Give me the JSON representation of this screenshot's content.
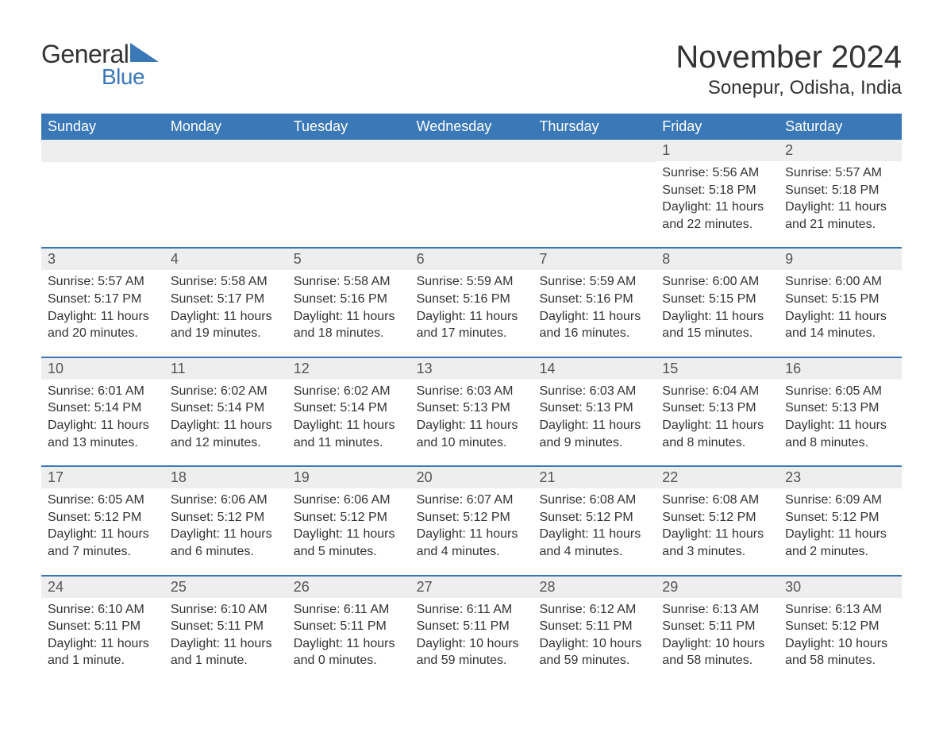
{
  "logo": {
    "text1": "General",
    "text2": "Blue",
    "iconColor": "#3b78b8"
  },
  "header": {
    "title": "November 2024",
    "location": "Sonepur, Odisha, India"
  },
  "colors": {
    "headerBg": "#3b78b8",
    "headerText": "#ffffff",
    "dayNumberBg": "#eeeeee",
    "dayText": "#333333",
    "rowDivider": "#3b78b8",
    "pageBg": "#ffffff"
  },
  "weekdays": [
    "Sunday",
    "Monday",
    "Tuesday",
    "Wednesday",
    "Thursday",
    "Friday",
    "Saturday"
  ],
  "weeks": [
    [
      null,
      null,
      null,
      null,
      null,
      {
        "day": "1",
        "sunrise": "Sunrise: 5:56 AM",
        "sunset": "Sunset: 5:18 PM",
        "daylight": "Daylight: 11 hours and 22 minutes."
      },
      {
        "day": "2",
        "sunrise": "Sunrise: 5:57 AM",
        "sunset": "Sunset: 5:18 PM",
        "daylight": "Daylight: 11 hours and 21 minutes."
      }
    ],
    [
      {
        "day": "3",
        "sunrise": "Sunrise: 5:57 AM",
        "sunset": "Sunset: 5:17 PM",
        "daylight": "Daylight: 11 hours and 20 minutes."
      },
      {
        "day": "4",
        "sunrise": "Sunrise: 5:58 AM",
        "sunset": "Sunset: 5:17 PM",
        "daylight": "Daylight: 11 hours and 19 minutes."
      },
      {
        "day": "5",
        "sunrise": "Sunrise: 5:58 AM",
        "sunset": "Sunset: 5:16 PM",
        "daylight": "Daylight: 11 hours and 18 minutes."
      },
      {
        "day": "6",
        "sunrise": "Sunrise: 5:59 AM",
        "sunset": "Sunset: 5:16 PM",
        "daylight": "Daylight: 11 hours and 17 minutes."
      },
      {
        "day": "7",
        "sunrise": "Sunrise: 5:59 AM",
        "sunset": "Sunset: 5:16 PM",
        "daylight": "Daylight: 11 hours and 16 minutes."
      },
      {
        "day": "8",
        "sunrise": "Sunrise: 6:00 AM",
        "sunset": "Sunset: 5:15 PM",
        "daylight": "Daylight: 11 hours and 15 minutes."
      },
      {
        "day": "9",
        "sunrise": "Sunrise: 6:00 AM",
        "sunset": "Sunset: 5:15 PM",
        "daylight": "Daylight: 11 hours and 14 minutes."
      }
    ],
    [
      {
        "day": "10",
        "sunrise": "Sunrise: 6:01 AM",
        "sunset": "Sunset: 5:14 PM",
        "daylight": "Daylight: 11 hours and 13 minutes."
      },
      {
        "day": "11",
        "sunrise": "Sunrise: 6:02 AM",
        "sunset": "Sunset: 5:14 PM",
        "daylight": "Daylight: 11 hours and 12 minutes."
      },
      {
        "day": "12",
        "sunrise": "Sunrise: 6:02 AM",
        "sunset": "Sunset: 5:14 PM",
        "daylight": "Daylight: 11 hours and 11 minutes."
      },
      {
        "day": "13",
        "sunrise": "Sunrise: 6:03 AM",
        "sunset": "Sunset: 5:13 PM",
        "daylight": "Daylight: 11 hours and 10 minutes."
      },
      {
        "day": "14",
        "sunrise": "Sunrise: 6:03 AM",
        "sunset": "Sunset: 5:13 PM",
        "daylight": "Daylight: 11 hours and 9 minutes."
      },
      {
        "day": "15",
        "sunrise": "Sunrise: 6:04 AM",
        "sunset": "Sunset: 5:13 PM",
        "daylight": "Daylight: 11 hours and 8 minutes."
      },
      {
        "day": "16",
        "sunrise": "Sunrise: 6:05 AM",
        "sunset": "Sunset: 5:13 PM",
        "daylight": "Daylight: 11 hours and 8 minutes."
      }
    ],
    [
      {
        "day": "17",
        "sunrise": "Sunrise: 6:05 AM",
        "sunset": "Sunset: 5:12 PM",
        "daylight": "Daylight: 11 hours and 7 minutes."
      },
      {
        "day": "18",
        "sunrise": "Sunrise: 6:06 AM",
        "sunset": "Sunset: 5:12 PM",
        "daylight": "Daylight: 11 hours and 6 minutes."
      },
      {
        "day": "19",
        "sunrise": "Sunrise: 6:06 AM",
        "sunset": "Sunset: 5:12 PM",
        "daylight": "Daylight: 11 hours and 5 minutes."
      },
      {
        "day": "20",
        "sunrise": "Sunrise: 6:07 AM",
        "sunset": "Sunset: 5:12 PM",
        "daylight": "Daylight: 11 hours and 4 minutes."
      },
      {
        "day": "21",
        "sunrise": "Sunrise: 6:08 AM",
        "sunset": "Sunset: 5:12 PM",
        "daylight": "Daylight: 11 hours and 4 minutes."
      },
      {
        "day": "22",
        "sunrise": "Sunrise: 6:08 AM",
        "sunset": "Sunset: 5:12 PM",
        "daylight": "Daylight: 11 hours and 3 minutes."
      },
      {
        "day": "23",
        "sunrise": "Sunrise: 6:09 AM",
        "sunset": "Sunset: 5:12 PM",
        "daylight": "Daylight: 11 hours and 2 minutes."
      }
    ],
    [
      {
        "day": "24",
        "sunrise": "Sunrise: 6:10 AM",
        "sunset": "Sunset: 5:11 PM",
        "daylight": "Daylight: 11 hours and 1 minute."
      },
      {
        "day": "25",
        "sunrise": "Sunrise: 6:10 AM",
        "sunset": "Sunset: 5:11 PM",
        "daylight": "Daylight: 11 hours and 1 minute."
      },
      {
        "day": "26",
        "sunrise": "Sunrise: 6:11 AM",
        "sunset": "Sunset: 5:11 PM",
        "daylight": "Daylight: 11 hours and 0 minutes."
      },
      {
        "day": "27",
        "sunrise": "Sunrise: 6:11 AM",
        "sunset": "Sunset: 5:11 PM",
        "daylight": "Daylight: 10 hours and 59 minutes."
      },
      {
        "day": "28",
        "sunrise": "Sunrise: 6:12 AM",
        "sunset": "Sunset: 5:11 PM",
        "daylight": "Daylight: 10 hours and 59 minutes."
      },
      {
        "day": "29",
        "sunrise": "Sunrise: 6:13 AM",
        "sunset": "Sunset: 5:11 PM",
        "daylight": "Daylight: 10 hours and 58 minutes."
      },
      {
        "day": "30",
        "sunrise": "Sunrise: 6:13 AM",
        "sunset": "Sunset: 5:12 PM",
        "daylight": "Daylight: 10 hours and 58 minutes."
      }
    ]
  ]
}
